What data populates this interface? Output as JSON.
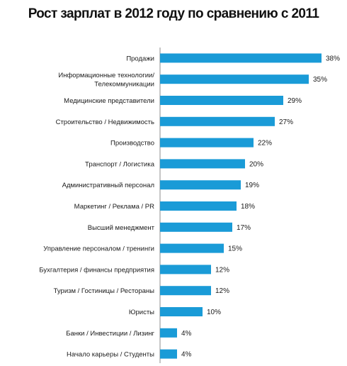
{
  "chart_data": {
    "type": "bar",
    "orientation": "horizontal",
    "title": "Рост зарплат в 2012 году по сравнению с 2011",
    "categories": [
      [
        "Продажи"
      ],
      [
        "Информационные технологии/",
        "Телекоммуникации"
      ],
      [
        "Медицинские представители"
      ],
      [
        "Строительство / Недвижимость"
      ],
      [
        "Производство"
      ],
      [
        "Транспорт / Логистика"
      ],
      [
        "Административный персонал"
      ],
      [
        "Маркетинг / Реклама / PR"
      ],
      [
        "Высший менеджмент"
      ],
      [
        "Управление персоналом / тренинги"
      ],
      [
        "Бухгалтерия / финансы предприятия"
      ],
      [
        "Туризм / Гостиницы / Рестораны"
      ],
      [
        "Юристы"
      ],
      [
        "Банки / Инвестиции / Лизинг"
      ],
      [
        "Начало карьеры / Студенты"
      ]
    ],
    "values": [
      38,
      35,
      29,
      27,
      22,
      20,
      19,
      18,
      17,
      15,
      12,
      12,
      10,
      4,
      4
    ],
    "labels": [
      "38%",
      "35%",
      "29%",
      "27%",
      "22%",
      "20%",
      "19%",
      "18%",
      "17%",
      "15%",
      "12%",
      "12%",
      "10%",
      "4%",
      "4%"
    ],
    "xlim": [
      0,
      40
    ],
    "bar_color": "#1a9bd7",
    "grid": false,
    "legend": "none"
  }
}
